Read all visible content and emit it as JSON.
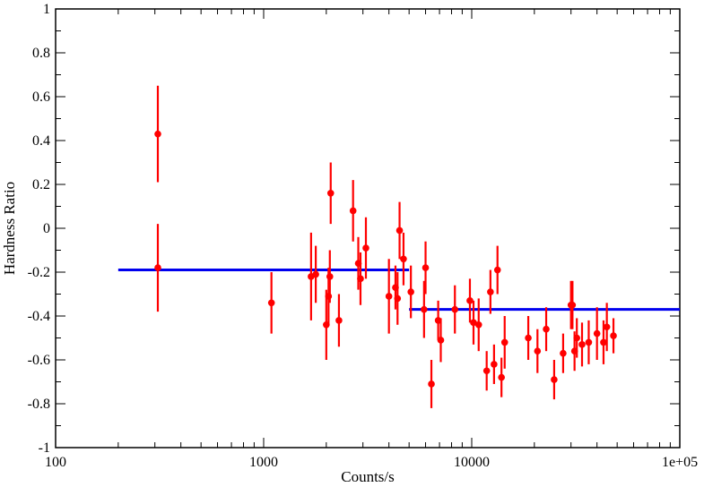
{
  "chart_data": {
    "type": "scatter",
    "title": "",
    "xlabel": "Counts/s",
    "ylabel": "Hardness Ratio",
    "xscale": "log",
    "xlim": [
      100,
      100000
    ],
    "ylim": [
      -1,
      1
    ],
    "grid": false,
    "legend": "none",
    "x_tick_labels": [
      "100",
      "1000",
      "10000",
      "1e+05"
    ],
    "y_tick_labels": [
      "-1",
      "-0.8",
      "-0.6",
      "-0.4",
      "-0.2",
      "0",
      "0.2",
      "0.4",
      "0.6",
      "0.8",
      "1"
    ],
    "colors": {
      "points": "#ff0000",
      "fit_lines": "#0000ee",
      "axes": "#000000"
    },
    "points": [
      {
        "x": 310,
        "y": 0.43,
        "err": 0.22
      },
      {
        "x": 310,
        "y": -0.18,
        "err": 0.2
      },
      {
        "x": 1090,
        "y": -0.34,
        "err": 0.14
      },
      {
        "x": 1690,
        "y": -0.22,
        "err": 0.2
      },
      {
        "x": 1780,
        "y": -0.21,
        "err": 0.13
      },
      {
        "x": 2000,
        "y": -0.44,
        "err": 0.16
      },
      {
        "x": 2050,
        "y": -0.31,
        "err": 0.13
      },
      {
        "x": 2080,
        "y": -0.22,
        "err": 0.12
      },
      {
        "x": 2100,
        "y": 0.16,
        "err": 0.14
      },
      {
        "x": 2300,
        "y": -0.42,
        "err": 0.12
      },
      {
        "x": 2690,
        "y": 0.08,
        "err": 0.14
      },
      {
        "x": 2850,
        "y": -0.16,
        "err": 0.12
      },
      {
        "x": 2920,
        "y": -0.23,
        "err": 0.12
      },
      {
        "x": 3100,
        "y": -0.09,
        "err": 0.14
      },
      {
        "x": 4000,
        "y": -0.31,
        "err": 0.17
      },
      {
        "x": 4300,
        "y": -0.27,
        "err": 0.1
      },
      {
        "x": 4400,
        "y": -0.32,
        "err": 0.12
      },
      {
        "x": 4500,
        "y": -0.01,
        "err": 0.13
      },
      {
        "x": 4700,
        "y": -0.14,
        "err": 0.12
      },
      {
        "x": 5100,
        "y": -0.29,
        "err": 0.12
      },
      {
        "x": 5900,
        "y": -0.37,
        "err": 0.13
      },
      {
        "x": 6000,
        "y": -0.18,
        "err": 0.12
      },
      {
        "x": 6400,
        "y": -0.71,
        "err": 0.11
      },
      {
        "x": 6900,
        "y": -0.42,
        "err": 0.09
      },
      {
        "x": 7100,
        "y": -0.51,
        "err": 0.1
      },
      {
        "x": 8300,
        "y": -0.37,
        "err": 0.11
      },
      {
        "x": 9800,
        "y": -0.33,
        "err": 0.1
      },
      {
        "x": 10200,
        "y": -0.43,
        "err": 0.1
      },
      {
        "x": 10800,
        "y": -0.44,
        "err": 0.12
      },
      {
        "x": 11800,
        "y": -0.65,
        "err": 0.09
      },
      {
        "x": 12300,
        "y": -0.29,
        "err": 0.1
      },
      {
        "x": 12800,
        "y": -0.62,
        "err": 0.09
      },
      {
        "x": 13300,
        "y": -0.19,
        "err": 0.11
      },
      {
        "x": 13900,
        "y": -0.68,
        "err": 0.09
      },
      {
        "x": 14400,
        "y": -0.52,
        "err": 0.12
      },
      {
        "x": 18700,
        "y": -0.5,
        "err": 0.1
      },
      {
        "x": 20700,
        "y": -0.56,
        "err": 0.1
      },
      {
        "x": 22800,
        "y": -0.46,
        "err": 0.1
      },
      {
        "x": 24900,
        "y": -0.69,
        "err": 0.09
      },
      {
        "x": 27500,
        "y": -0.57,
        "err": 0.09
      },
      {
        "x": 30000,
        "y": -0.35,
        "err": 0.11
      },
      {
        "x": 30500,
        "y": -0.35,
        "err": 0.11
      },
      {
        "x": 31200,
        "y": -0.56,
        "err": 0.09
      },
      {
        "x": 32000,
        "y": -0.5,
        "err": 0.09
      },
      {
        "x": 33900,
        "y": -0.53,
        "err": 0.1
      },
      {
        "x": 36500,
        "y": -0.52,
        "err": 0.1
      },
      {
        "x": 40000,
        "y": -0.48,
        "err": 0.12
      },
      {
        "x": 43000,
        "y": -0.52,
        "err": 0.1
      },
      {
        "x": 44600,
        "y": -0.45,
        "err": 0.11
      },
      {
        "x": 48000,
        "y": -0.49,
        "err": 0.08
      }
    ],
    "fit_lines": [
      {
        "x_start": 200,
        "x_end": 5000,
        "y": -0.19
      },
      {
        "x_start": 5000,
        "x_end": 100000,
        "y": -0.37
      }
    ]
  }
}
